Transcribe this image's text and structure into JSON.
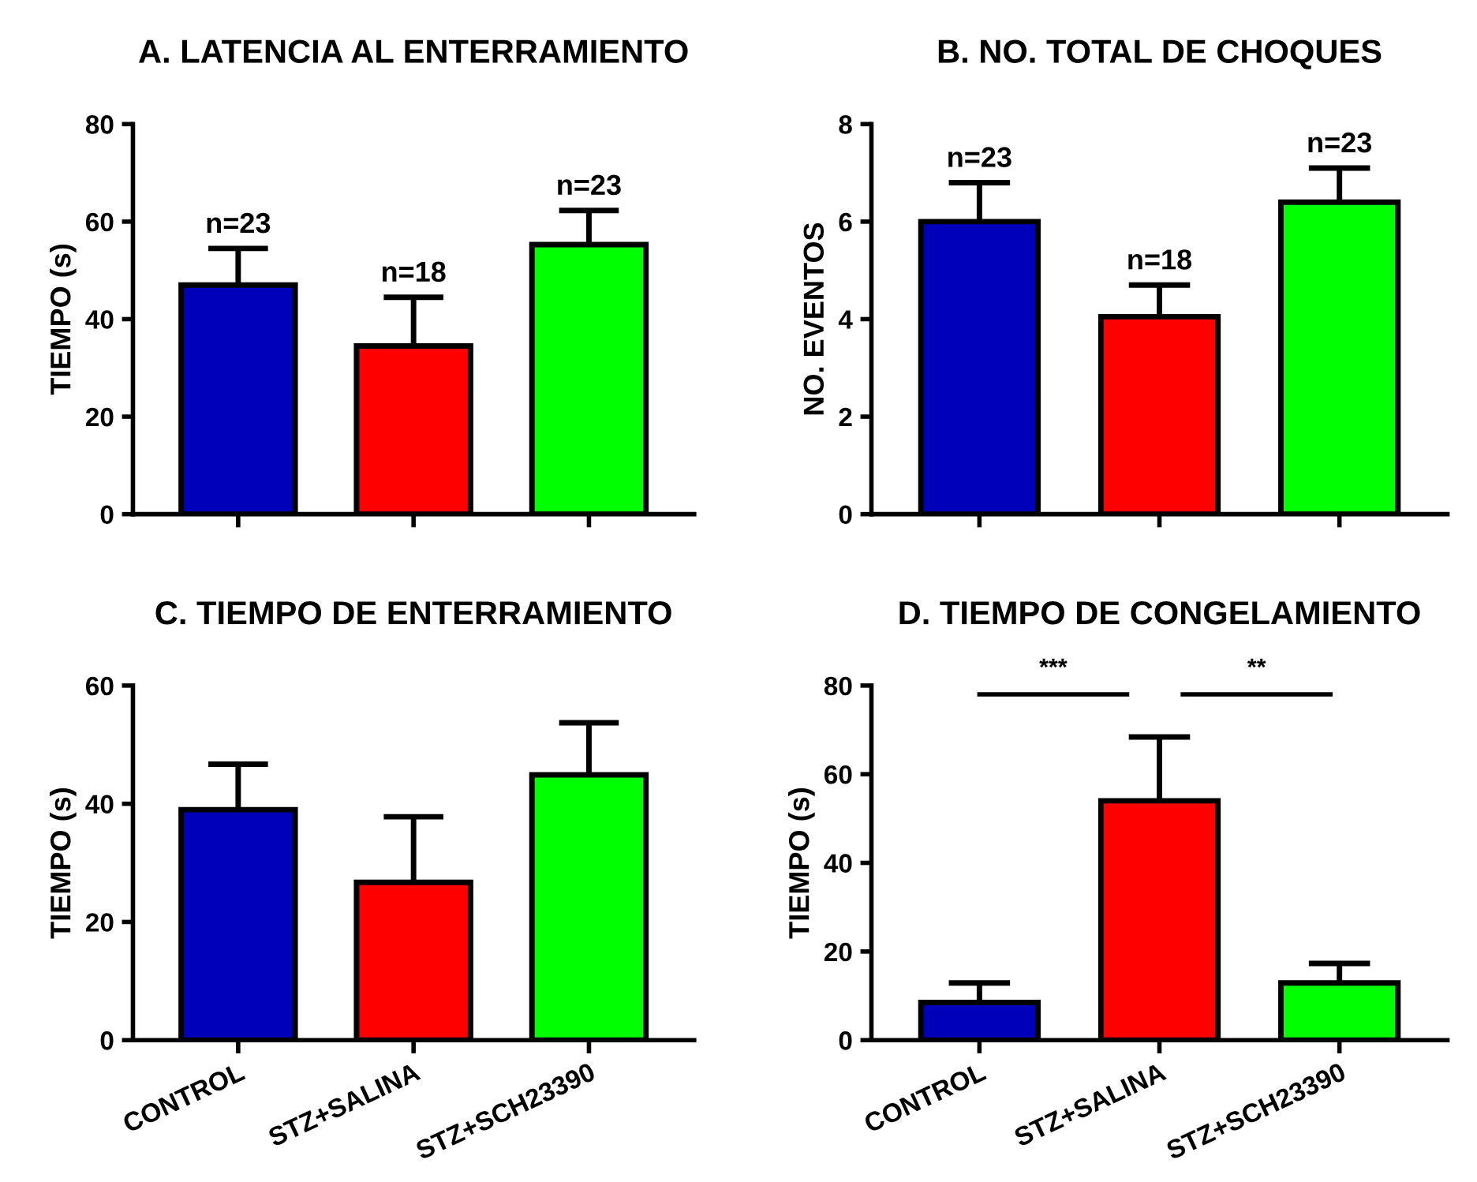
{
  "chart_data": [
    {
      "type": "bar",
      "title": "A. LATENCIA AL ENTERRAMIENTO",
      "ylabel": "TIEMPO (s)",
      "categories": [
        null,
        null,
        null
      ],
      "values": [
        47,
        34.5,
        55.3
      ],
      "errors": [
        [
          47,
          54.5
        ],
        [
          34.5,
          44.5
        ],
        [
          55.3,
          62.3
        ]
      ],
      "colors": [
        "#0000bb",
        "#ff0000",
        "#00ff00"
      ],
      "annotations": [
        {
          "text": "n=23",
          "y": 54.5
        },
        {
          "text": "n=18",
          "y": 44.5
        },
        {
          "text": "n=23",
          "y": 62.3
        }
      ],
      "ylim": [
        0,
        80
      ],
      "yticks": [
        0,
        20,
        40,
        60,
        80
      ],
      "tick_labels": "y",
      "grid": false,
      "legend": false
    },
    {
      "type": "bar",
      "title": "B. NO. TOTAL DE CHOQUES",
      "ylabel": "NO. EVENTOS",
      "categories": [
        null,
        null,
        null
      ],
      "values": [
        6.0,
        4.05,
        6.4
      ],
      "errors": [
        [
          6.0,
          6.8
        ],
        [
          4.05,
          4.7
        ],
        [
          6.4,
          7.1
        ]
      ],
      "colors": [
        "#0000bb",
        "#ff0000",
        "#00ff00"
      ],
      "annotations": [
        {
          "text": "n=23",
          "y": 6.8
        },
        {
          "text": "n=18",
          "y": 4.7
        },
        {
          "text": "n=23",
          "y": 7.1
        }
      ],
      "ylim": [
        0,
        8
      ],
      "yticks": [
        0,
        2,
        4,
        6,
        8
      ],
      "tick_labels": "y",
      "grid": false,
      "legend": false
    },
    {
      "type": "bar",
      "title": "C. TIEMPO DE ENTERRAMIENTO",
      "ylabel": "TIEMPO (s)",
      "categories": [
        "CONTROL",
        "STZ+SALINA",
        "STZ+SCH23390"
      ],
      "values": [
        39,
        26.7,
        44.9
      ],
      "errors": [
        [
          39,
          46.7
        ],
        [
          26.7,
          37.8
        ],
        [
          44.9,
          53.7
        ]
      ],
      "colors": [
        "#0000bb",
        "#ff0000",
        "#00ff00"
      ],
      "ylim": [
        0,
        60
      ],
      "yticks": [
        0,
        20,
        40,
        60
      ],
      "grid": false,
      "legend": false
    },
    {
      "type": "bar",
      "title": "D. TIEMPO DE CONGELAMIENTO",
      "ylabel": "TIEMPO (s)",
      "categories": [
        "CONTROL",
        "STZ+SALINA",
        "STZ+SCH23390"
      ],
      "values": [
        8.5,
        54,
        12.9
      ],
      "errors": [
        [
          8.5,
          12.9
        ],
        [
          54,
          68.4
        ],
        [
          12.9,
          17.3
        ]
      ],
      "colors": [
        "#0000bb",
        "#ff0000",
        "#00ff00"
      ],
      "annotations": [
        "***",
        "**"
      ],
      "ylim": [
        0,
        80
      ],
      "yticks": [
        0,
        20,
        40,
        60,
        80
      ],
      "grid": false,
      "legend": false
    }
  ]
}
